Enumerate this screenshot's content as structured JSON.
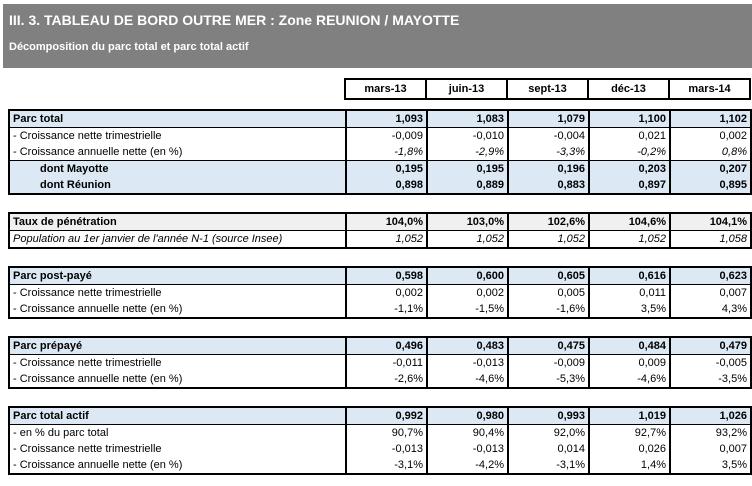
{
  "header": {
    "title": "III. 3. TABLEAU DE BORD OUTRE MER : Zone REUNION / MAYOTTE",
    "subtitle": "Décomposition du parc total et parc total actif"
  },
  "columns": [
    "mars-13",
    "juin-13",
    "sept-13",
    "déc-13",
    "mars-14"
  ],
  "blocks": [
    {
      "id": "parc-total",
      "rows": [
        {
          "label": "Parc total",
          "style": "total",
          "values": [
            "1,093",
            "1,083",
            "1,079",
            "1,100",
            "1,102"
          ]
        },
        {
          "label": "- Croissance nette trimestrielle",
          "style": "sub",
          "values": [
            "-0,009",
            "-0,010",
            "-0,004",
            "0,021",
            "0,002"
          ]
        },
        {
          "label": "- Croissance annuelle nette (en %)",
          "style": "sub-italic",
          "values": [
            "-1,8%",
            "-2,9%",
            "-3,3%",
            "-0,2%",
            "0,8%"
          ]
        },
        {
          "label": "dont Mayotte",
          "style": "dont",
          "values": [
            "0,195",
            "0,195",
            "0,196",
            "0,203",
            "0,207"
          ]
        },
        {
          "label": "dont Réunion",
          "style": "dont",
          "values": [
            "0,898",
            "0,889",
            "0,883",
            "0,897",
            "0,895"
          ]
        }
      ]
    },
    {
      "id": "taux-penetration",
      "rows": [
        {
          "label": "Taux de pénétration",
          "style": "taux",
          "values": [
            "104,0%",
            "103,0%",
            "102,6%",
            "104,6%",
            "104,1%"
          ]
        },
        {
          "label": "Population au 1er janvier de l'année N-1 (source Insee)",
          "style": "population",
          "values": [
            "1,052",
            "1,052",
            "1,052",
            "1,052",
            "1,058"
          ]
        }
      ]
    },
    {
      "id": "parc-post-paye",
      "rows": [
        {
          "label": "Parc post-payé",
          "style": "total",
          "values": [
            "0,598",
            "0,600",
            "0,605",
            "0,616",
            "0,623"
          ]
        },
        {
          "label": "- Croissance nette trimestrielle",
          "style": "sub",
          "values": [
            "0,002",
            "0,002",
            "0,005",
            "0,011",
            "0,007"
          ]
        },
        {
          "label": "- Croissance annuelle nette (en %)",
          "style": "sub",
          "values": [
            "-1,1%",
            "-1,5%",
            "-1,6%",
            "3,5%",
            "4,3%"
          ]
        }
      ]
    },
    {
      "id": "parc-prepaye",
      "rows": [
        {
          "label": "Parc prépayé",
          "style": "total",
          "values": [
            "0,496",
            "0,483",
            "0,475",
            "0,484",
            "0,479"
          ]
        },
        {
          "label": "- Croissance nette trimestrielle",
          "style": "sub",
          "values": [
            "-0,011",
            "-0,013",
            "-0,009",
            "0,009",
            "-0,005"
          ]
        },
        {
          "label": "- Croissance annuelle nette (en %)",
          "style": "sub",
          "values": [
            "-2,6%",
            "-4,6%",
            "-5,3%",
            "-4,6%",
            "-3,5%"
          ]
        }
      ]
    },
    {
      "id": "parc-total-actif",
      "rows": [
        {
          "label": "Parc total actif",
          "style": "total",
          "values": [
            "0,992",
            "0,980",
            "0,993",
            "1,019",
            "1,026"
          ]
        },
        {
          "label": "- en % du parc total",
          "style": "sub",
          "values": [
            "90,7%",
            "90,4%",
            "92,0%",
            "92,7%",
            "93,2%"
          ]
        },
        {
          "label": "- Croissance nette trimestrielle",
          "style": "sub",
          "values": [
            "-0,013",
            "-0,013",
            "0,014",
            "0,026",
            "0,007"
          ]
        },
        {
          "label": "- Croissance annuelle nette (en %)",
          "style": "sub",
          "values": [
            "-3,1%",
            "-4,2%",
            "-3,1%",
            "1,4%",
            "3,5%"
          ]
        }
      ]
    }
  ],
  "colors": {
    "header_bar": "#808080",
    "header_text": "#FFFFFF",
    "row_highlight_blue": "#DCE9F5",
    "row_penetration_gray": "#F0F0F0",
    "border": "#000000"
  }
}
